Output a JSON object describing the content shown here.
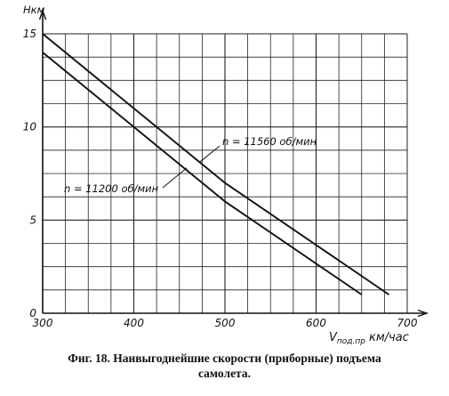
{
  "chart_data": {
    "type": "line",
    "title": "",
    "xlabel": "V_под.пр км/час",
    "xlabel_main": "V",
    "xlabel_sub": "под.пр",
    "xlabel_unit": "км/час",
    "ylabel": "Нкм",
    "xlim": [
      300,
      700
    ],
    "ylim": [
      0,
      15
    ],
    "x_ticks": [
      300,
      400,
      500,
      600,
      700
    ],
    "y_ticks": [
      0,
      5,
      10,
      15
    ],
    "x_minor_step": 25,
    "y_minor_step": 1.25,
    "grid": true,
    "legend": "none",
    "series": [
      {
        "name": "n = 11560 об/мин",
        "x": [
          300,
          500,
          680
        ],
        "y": [
          15,
          7,
          1
        ],
        "color": "#111111"
      },
      {
        "name": "n = 11200 об/мин",
        "x": [
          300,
          500,
          650
        ],
        "y": [
          14,
          6,
          1
        ],
        "color": "#111111"
      }
    ]
  },
  "caption": {
    "line1": "Фиг. 18. Наивыгоднейшие скорости (приборные) подъема",
    "line2": "самолета."
  }
}
